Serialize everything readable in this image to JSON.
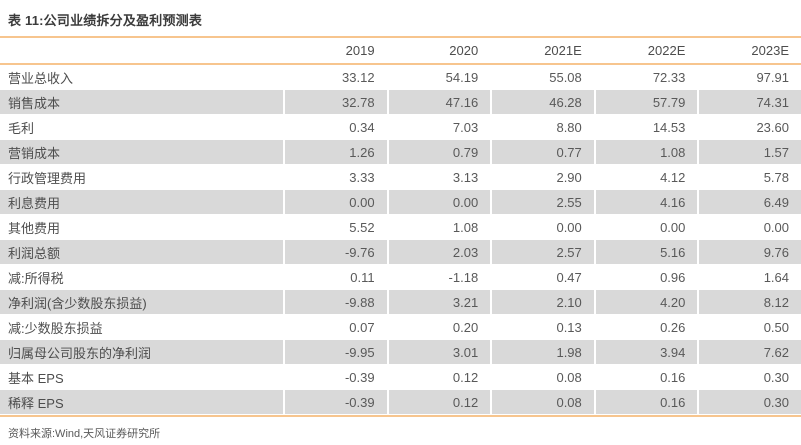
{
  "title": "表 11:公司业绩拆分及盈利预测表",
  "source": "资料来源:Wind,天风证券研究所",
  "colors": {
    "accent_line": "#f7c58e",
    "row_shade": "#d9d9d9",
    "title_text": "#3b3b3b",
    "body_text": "#595959"
  },
  "table": {
    "columns": [
      "",
      "2019",
      "2020",
      "2021E",
      "2022E",
      "2023E"
    ],
    "rows": [
      {
        "label": "营业总收入",
        "values": [
          "33.12",
          "54.19",
          "55.08",
          "72.33",
          "97.91"
        ]
      },
      {
        "label": "销售成本",
        "values": [
          "32.78",
          "47.16",
          "46.28",
          "57.79",
          "74.31"
        ]
      },
      {
        "label": "毛利",
        "values": [
          "0.34",
          "7.03",
          "8.80",
          "14.53",
          "23.60"
        ]
      },
      {
        "label": "营销成本",
        "values": [
          "1.26",
          "0.79",
          "0.77",
          "1.08",
          "1.57"
        ]
      },
      {
        "label": "行政管理费用",
        "values": [
          "3.33",
          "3.13",
          "2.90",
          "4.12",
          "5.78"
        ]
      },
      {
        "label": "利息费用",
        "values": [
          "0.00",
          "0.00",
          "2.55",
          "4.16",
          "6.49"
        ]
      },
      {
        "label": "其他费用",
        "values": [
          "5.52",
          "1.08",
          "0.00",
          "0.00",
          "0.00"
        ]
      },
      {
        "label": "利润总额",
        "values": [
          "-9.76",
          "2.03",
          "2.57",
          "5.16",
          "9.76"
        ]
      },
      {
        "label": "减:所得税",
        "values": [
          "0.11",
          "-1.18",
          "0.47",
          "0.96",
          "1.64"
        ]
      },
      {
        "label": "净利润(含少数股东损益)",
        "values": [
          "-9.88",
          "3.21",
          "2.10",
          "4.20",
          "8.12"
        ]
      },
      {
        "label": "减:少数股东损益",
        "values": [
          "0.07",
          "0.20",
          "0.13",
          "0.26",
          "0.50"
        ]
      },
      {
        "label": "归属母公司股东的净利润",
        "values": [
          "-9.95",
          "3.01",
          "1.98",
          "3.94",
          "7.62"
        ]
      },
      {
        "label": "基本 EPS",
        "values": [
          "-0.39",
          "0.12",
          "0.08",
          "0.16",
          "0.30"
        ]
      },
      {
        "label": "稀释 EPS",
        "values": [
          "-0.39",
          "0.12",
          "0.08",
          "0.16",
          "0.30"
        ]
      }
    ]
  }
}
